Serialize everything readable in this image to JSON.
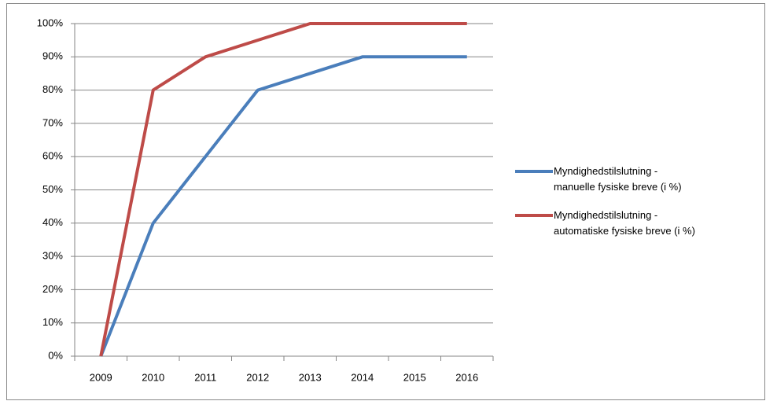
{
  "chart_data": {
    "type": "line",
    "categories": [
      "2009",
      "2010",
      "2011",
      "2012",
      "2013",
      "2014",
      "2015",
      "2016"
    ],
    "series": [
      {
        "name": "Myndighedstilslutning -\nmanuelle fysiske breve (i %)",
        "color": "#4a7ebb",
        "values": [
          0,
          40,
          60,
          80,
          85,
          90,
          90,
          90
        ]
      },
      {
        "name": "Myndighedstilslutning  -\nautomatiske fysiske breve (i %)",
        "color": "#be4b48",
        "values": [
          0,
          80,
          90,
          95,
          100,
          100,
          100,
          100
        ]
      }
    ],
    "ylim": [
      0,
      100
    ],
    "yticks": [
      {
        "value": 0,
        "label": "0%"
      },
      {
        "value": 10,
        "label": "10%"
      },
      {
        "value": 20,
        "label": "20%"
      },
      {
        "value": 30,
        "label": "30%"
      },
      {
        "value": 40,
        "label": "40%"
      },
      {
        "value": 50,
        "label": "50%"
      },
      {
        "value": 60,
        "label": "60%"
      },
      {
        "value": 70,
        "label": "70%"
      },
      {
        "value": 80,
        "label": "80%"
      },
      {
        "value": 90,
        "label": "90%"
      },
      {
        "value": 100,
        "label": "100%"
      }
    ],
    "grid": true,
    "legend": "right"
  }
}
